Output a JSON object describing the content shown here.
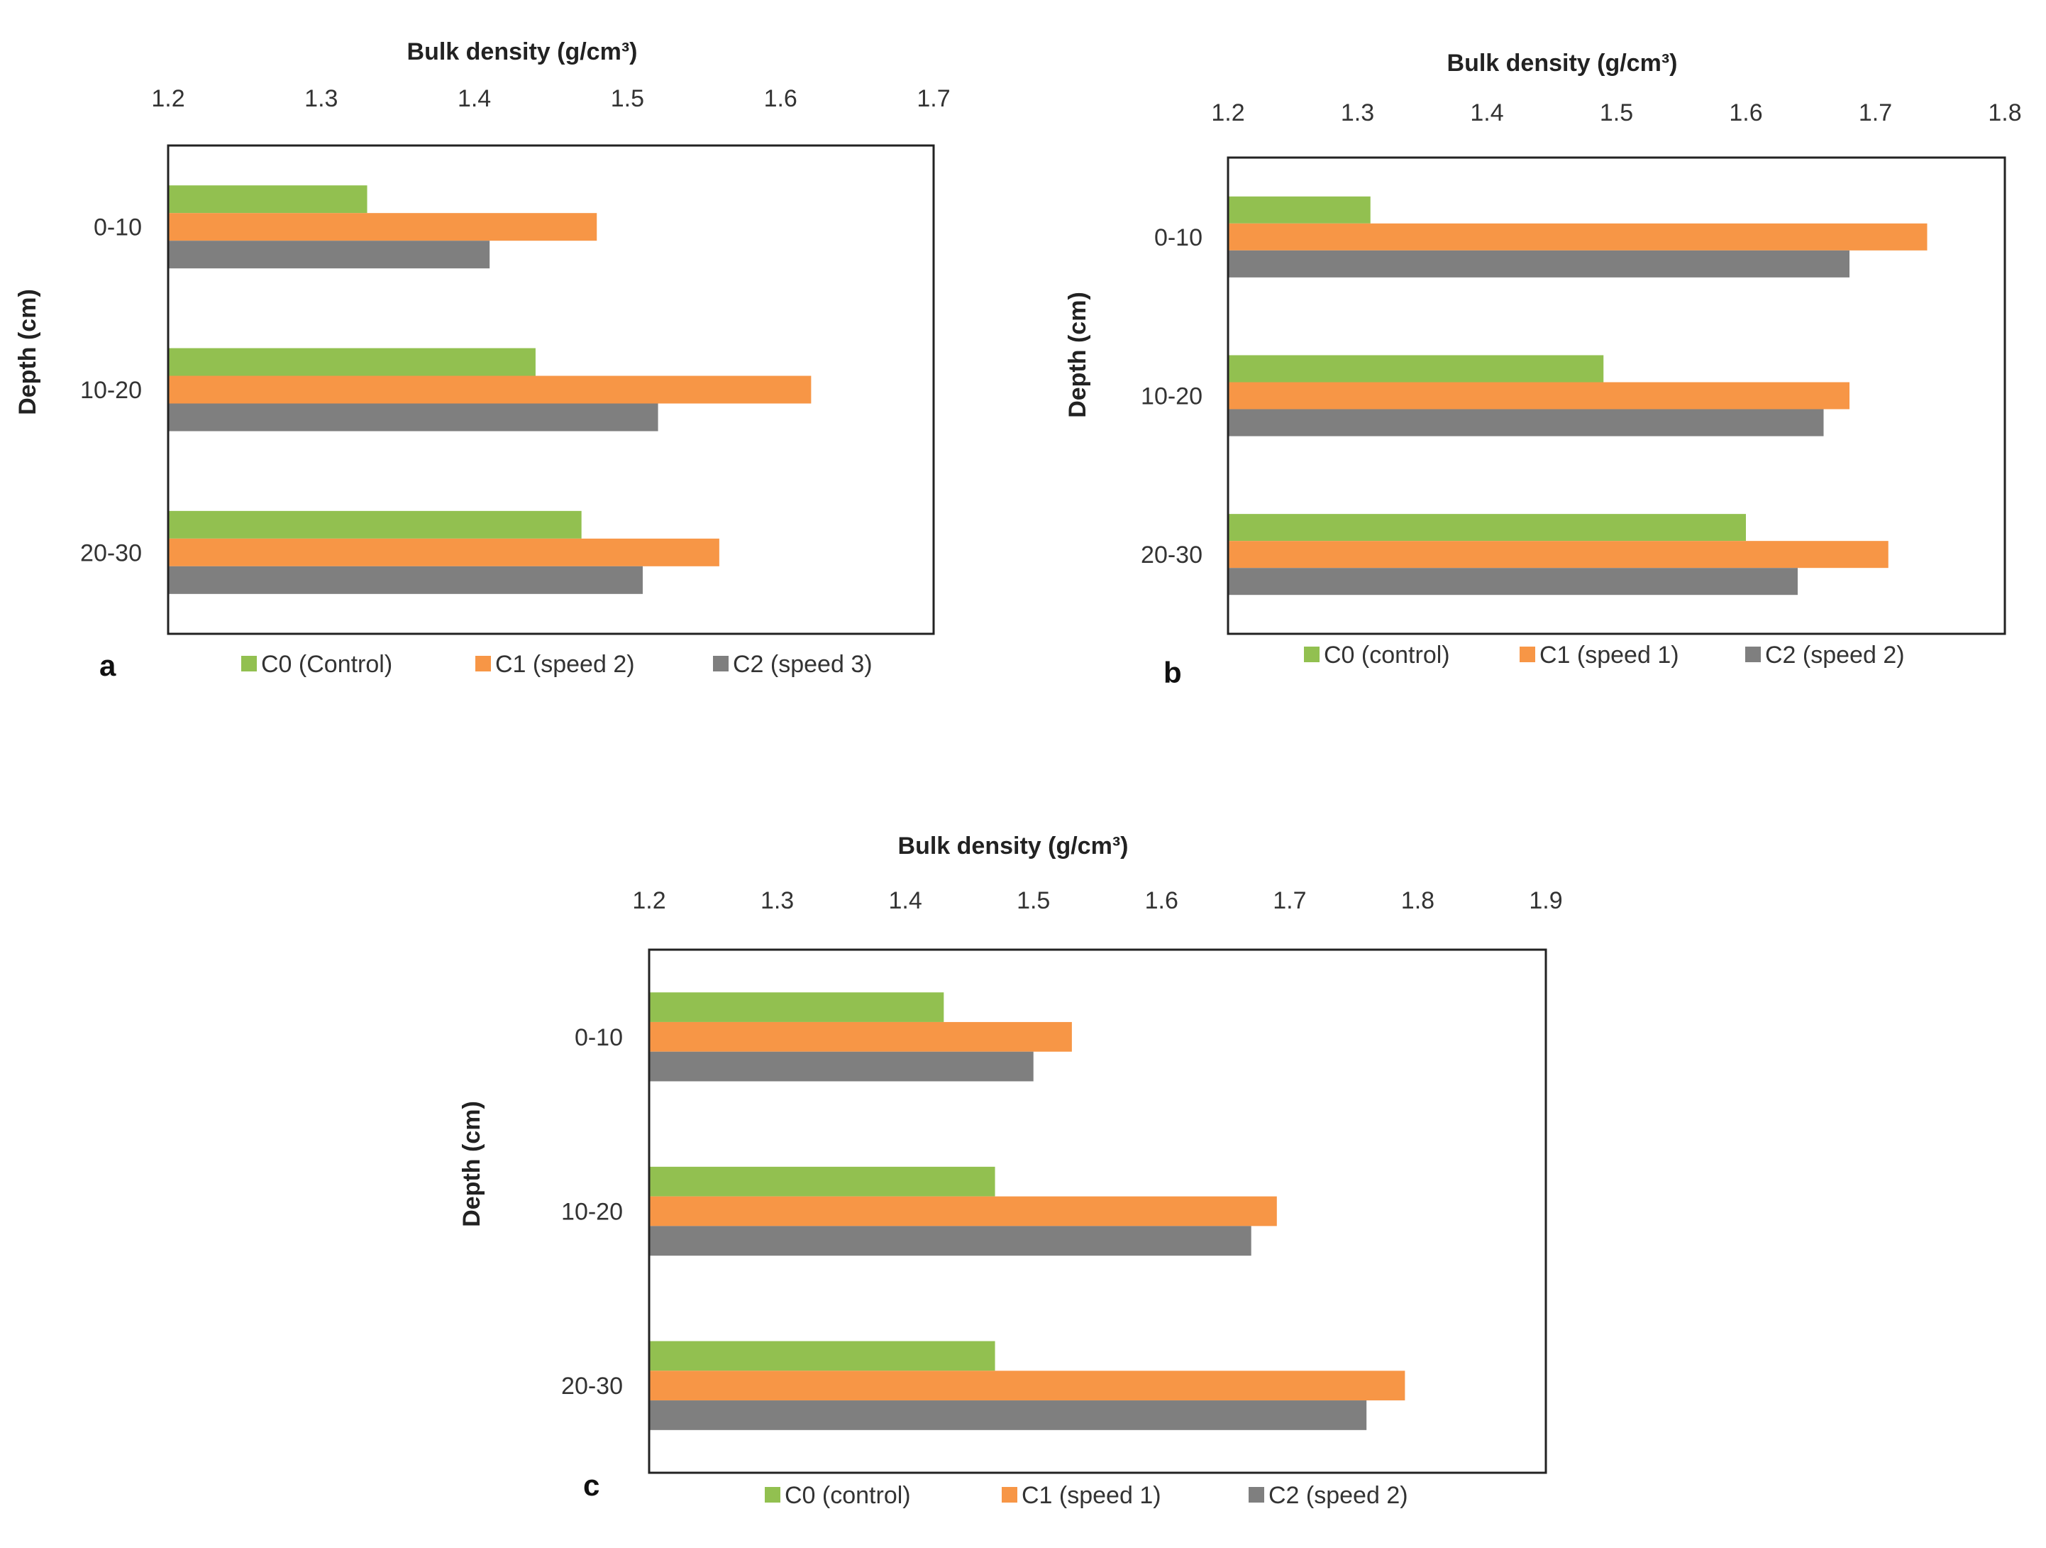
{
  "colors": {
    "c0": "#92C050",
    "c1": "#F79646",
    "c2": "#7F7F7F",
    "axis": "#222222"
  },
  "chart_data": [
    {
      "type": "bar",
      "orientation": "horizontal",
      "panel_label": "a",
      "title": "Bulk density (g/cm³)",
      "xlabel": "Bulk density (g/cm³)",
      "ylabel": "Depth (cm)",
      "xlim": [
        1.2,
        1.7
      ],
      "xticks": [
        "1.2",
        "1.3",
        "1.4",
        "1.5",
        "1.6",
        "1.7"
      ],
      "categories": [
        "0-10",
        "10-20",
        "20-30"
      ],
      "series": [
        {
          "name": "C0 (Control)",
          "values": [
            1.33,
            1.44,
            1.47
          ]
        },
        {
          "name": "C1 (speed 2)",
          "values": [
            1.48,
            1.62,
            1.56
          ]
        },
        {
          "name": "C2 (speed 3)",
          "values": [
            1.41,
            1.52,
            1.51
          ]
        }
      ]
    },
    {
      "type": "bar",
      "orientation": "horizontal",
      "panel_label": "b",
      "title": "Bulk density (g/cm³)",
      "xlabel": "Bulk density (g/cm³)",
      "ylabel": "Depth (cm)",
      "xlim": [
        1.2,
        1.8
      ],
      "xticks": [
        "1.2",
        "1.3",
        "1.4",
        "1.5",
        "1.6",
        "1.7",
        "1.8"
      ],
      "categories": [
        "0-10",
        "10-20",
        "20-30"
      ],
      "series": [
        {
          "name": "C0 (control)",
          "values": [
            1.31,
            1.49,
            1.6
          ]
        },
        {
          "name": "C1 (speed 1)",
          "values": [
            1.74,
            1.68,
            1.71
          ]
        },
        {
          "name": "C2 (speed 2)",
          "values": [
            1.68,
            1.66,
            1.64
          ]
        }
      ]
    },
    {
      "type": "bar",
      "orientation": "horizontal",
      "panel_label": "c",
      "title": "Bulk density (g/cm³)",
      "xlabel": "Bulk density (g/cm³)",
      "ylabel": "Depth (cm)",
      "xlim": [
        1.2,
        1.9
      ],
      "xticks": [
        "1.2",
        "1.3",
        "1.4",
        "1.5",
        "1.6",
        "1.7",
        "1.8",
        "1.9"
      ],
      "categories": [
        "0-10",
        "10-20",
        "20-30"
      ],
      "series": [
        {
          "name": "C0 (control)",
          "values": [
            1.43,
            1.47,
            1.47
          ]
        },
        {
          "name": "C1 (speed 1)",
          "values": [
            1.53,
            1.69,
            1.79
          ]
        },
        {
          "name": "C2 (speed 2)",
          "values": [
            1.5,
            1.67,
            1.76
          ]
        }
      ]
    }
  ]
}
